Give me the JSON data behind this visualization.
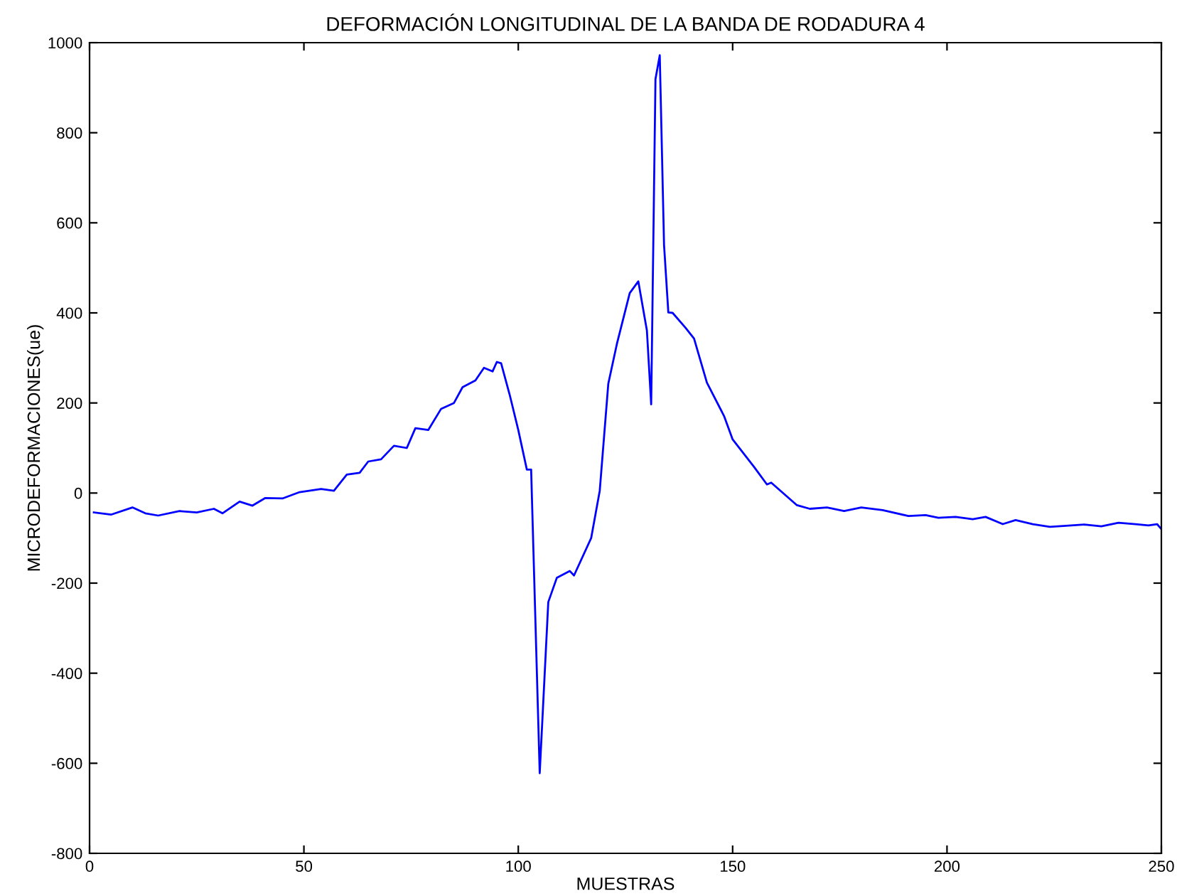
{
  "chart_data": {
    "type": "line",
    "title": "DEFORMACIÓN LONGITUDINAL DE LA BANDA DE RODADURA 4",
    "xlabel": "MUESTRAS",
    "ylabel": "MICRODEFORMACIONES(ue)",
    "x": [
      1,
      5,
      10,
      13,
      16,
      21,
      25,
      29,
      31,
      35,
      38,
      41,
      45,
      49,
      54,
      57,
      60,
      63,
      65,
      68,
      71,
      74,
      76,
      79,
      82,
      85,
      87,
      90,
      92,
      94,
      95,
      96,
      98,
      100,
      102,
      103,
      105,
      107,
      109,
      112,
      113,
      117,
      119,
      121,
      123,
      126,
      128,
      130,
      131,
      132,
      133,
      134,
      135,
      136,
      139,
      141,
      144,
      148,
      150,
      155,
      158,
      159,
      165,
      168,
      172,
      176,
      180,
      185,
      191,
      195,
      198,
      202,
      206,
      209,
      213,
      216,
      220,
      224,
      229,
      232,
      236,
      240,
      244,
      247,
      249,
      250
    ],
    "series": [
      {
        "color": "#0000ff",
        "values": [
          -43,
          -48,
          -32,
          -45,
          -50,
          -40,
          -43,
          -35,
          -45,
          -19,
          -28,
          -11,
          -12,
          2,
          9,
          5,
          41,
          45,
          70,
          75,
          105,
          100,
          144,
          140,
          187,
          200,
          235,
          250,
          278,
          270,
          291,
          288,
          218,
          140,
          52,
          52,
          -622,
          -242,
          -188,
          -173,
          -183,
          -100,
          5,
          243,
          331,
          444,
          470,
          361,
          197,
          919,
          972,
          551,
          401,
          400,
          367,
          343,
          245,
          171,
          119,
          58,
          19,
          23,
          -27,
          -35,
          -32,
          -40,
          -32,
          -38,
          -51,
          -49,
          -55,
          -53,
          -58,
          -53,
          -69,
          -60,
          -69,
          -75,
          -72,
          -70,
          -74,
          -66,
          -69,
          -72,
          -69,
          -80
        ]
      }
    ],
    "xlim": [
      0,
      250
    ],
    "ylim": [
      -800,
      1000
    ],
    "xticks": [
      0,
      50,
      100,
      150,
      200,
      250
    ],
    "yticks": [
      -800,
      -600,
      -400,
      -200,
      0,
      200,
      400,
      600,
      800,
      1000
    ],
    "grid": false,
    "line_style": "solid",
    "marker": "none"
  }
}
